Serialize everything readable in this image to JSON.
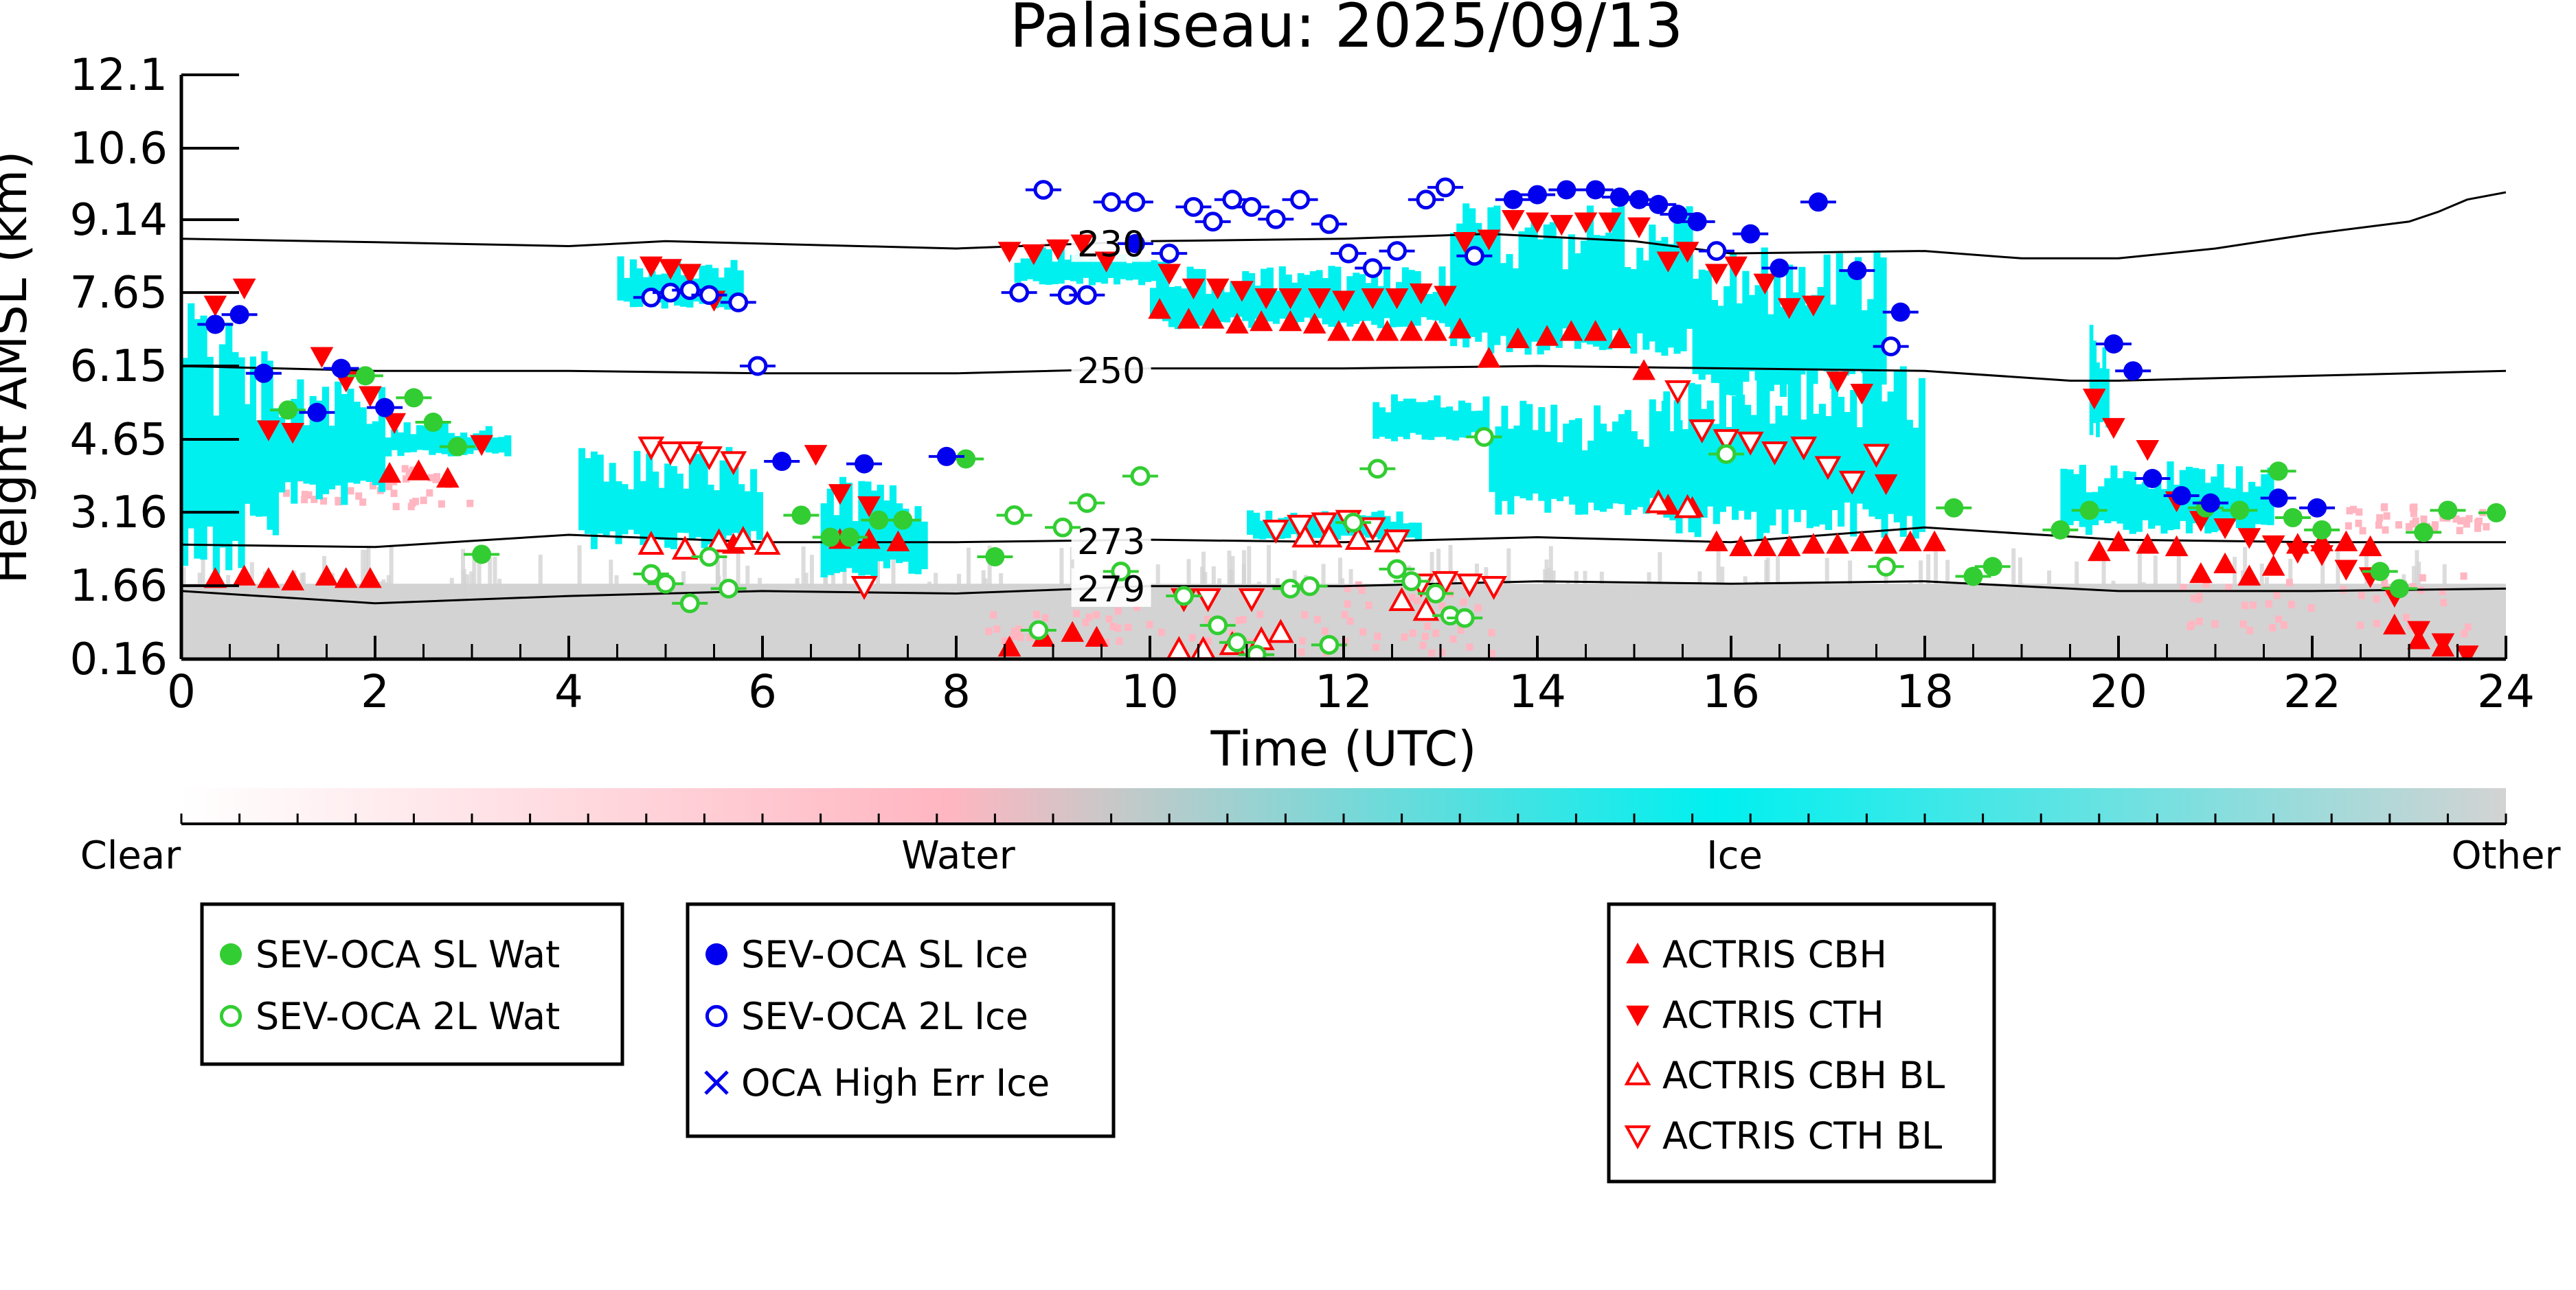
{
  "chart_data": {
    "type": "scatter",
    "title": "Palaiseau: 2025/09/13",
    "xlabel": "Time (UTC)",
    "ylabel": "Height AMSL (km)",
    "xlim": [
      0,
      24
    ],
    "ylim": [
      0.16,
      12.1
    ],
    "x_ticks": [
      0,
      2,
      4,
      6,
      8,
      10,
      12,
      14,
      16,
      18,
      20,
      22,
      24
    ],
    "y_ticks": [
      0.16,
      1.66,
      3.16,
      4.65,
      6.15,
      7.65,
      9.14,
      10.6,
      12.1
    ],
    "y_tick_labels": [
      "0.16",
      "1.66",
      "3.16",
      "4.65",
      "6.15",
      "7.65",
      "9.14",
      "10.6",
      "12.1"
    ],
    "grid": false,
    "background_classes": [
      {
        "name": "Water",
        "color": "#ffb6c1"
      },
      {
        "name": "Ice",
        "color": "#00f0f0"
      },
      {
        "name": "Other",
        "color": "#d3d3d3"
      }
    ],
    "isotherms": [
      {
        "label": "230",
        "label_x": 9.6,
        "x": [
          0,
          2,
          4,
          5,
          6,
          8,
          10,
          12,
          13.5,
          15,
          16,
          18,
          19,
          20,
          21,
          22,
          23,
          23.3,
          23.6,
          24
        ],
        "y": [
          8.75,
          8.68,
          8.6,
          8.7,
          8.65,
          8.55,
          8.7,
          8.75,
          8.85,
          8.7,
          8.45,
          8.5,
          8.35,
          8.35,
          8.55,
          8.85,
          9.1,
          9.3,
          9.55,
          9.7
        ]
      },
      {
        "label": "250",
        "label_x": 9.6,
        "x": [
          0,
          2,
          4,
          6,
          8,
          10,
          12,
          14,
          16,
          18,
          19.5,
          20,
          22,
          24
        ],
        "y": [
          6.15,
          6.05,
          6.05,
          6.0,
          6.0,
          6.1,
          6.1,
          6.15,
          6.1,
          6.05,
          5.85,
          5.85,
          5.95,
          6.05
        ]
      },
      {
        "label": "273",
        "label_x": 9.6,
        "x": [
          0,
          2,
          4,
          6,
          8,
          10,
          12,
          14,
          16,
          18,
          20,
          22,
          24
        ],
        "y": [
          2.5,
          2.45,
          2.7,
          2.55,
          2.55,
          2.6,
          2.55,
          2.65,
          2.55,
          2.85,
          2.6,
          2.55,
          2.55
        ]
      },
      {
        "label": "279",
        "label_x": 9.6,
        "x": [
          0,
          2,
          4,
          6,
          8,
          10,
          12,
          14,
          16,
          18,
          20,
          22,
          24
        ],
        "y": [
          1.55,
          1.3,
          1.45,
          1.55,
          1.5,
          1.65,
          1.65,
          1.75,
          1.7,
          1.75,
          1.55,
          1.55,
          1.6
        ]
      }
    ],
    "series": [
      {
        "name": "SEV-OCA SL Wat",
        "color": "#32cd32",
        "marker": "filled-circle",
        "x": [
          1.1,
          1.9,
          2.4,
          2.6,
          2.85,
          3.1,
          6.4,
          6.7,
          6.9,
          7.2,
          7.45,
          8.1,
          8.4,
          18.3,
          18.5,
          18.7,
          19.4,
          19.7,
          20.9,
          21.25,
          21.65,
          21.8,
          22.1,
          22.7,
          22.9,
          23.15,
          23.4,
          23.9
        ],
        "y": [
          5.25,
          5.95,
          5.5,
          5.0,
          4.5,
          2.3,
          3.1,
          2.65,
          2.65,
          3.0,
          3.0,
          4.25,
          2.25,
          3.25,
          1.85,
          2.05,
          2.8,
          3.2,
          3.25,
          3.2,
          4.0,
          3.05,
          2.8,
          1.95,
          1.6,
          2.75,
          3.2,
          3.15
        ]
      },
      {
        "name": "SEV-OCA 2L Wat",
        "color": "#32cd32",
        "marker": "open-circle",
        "x": [
          4.85,
          5.0,
          5.25,
          5.45,
          5.65,
          8.6,
          8.85,
          9.1,
          9.35,
          9.7,
          9.9,
          10.35,
          10.7,
          10.9,
          11.1,
          11.45,
          11.65,
          11.85,
          12.1,
          12.35,
          12.55,
          12.7,
          12.95,
          13.1,
          13.25,
          13.45,
          15.95,
          17.6
        ],
        "y": [
          1.9,
          1.7,
          1.3,
          2.25,
          1.6,
          3.1,
          0.75,
          2.85,
          3.35,
          1.95,
          3.9,
          1.45,
          0.85,
          0.5,
          0.25,
          1.6,
          1.65,
          0.45,
          2.95,
          4.05,
          2.0,
          1.75,
          1.5,
          1.05,
          1.0,
          4.7,
          4.35,
          2.05
        ]
      },
      {
        "name": "SEV-OCA SL Ice",
        "color": "#0000ee",
        "marker": "filled-circle",
        "x": [
          0.35,
          0.6,
          0.85,
          1.4,
          1.65,
          2.1,
          6.2,
          7.05,
          7.9,
          9.85,
          13.75,
          14.0,
          14.3,
          14.6,
          14.85,
          15.05,
          15.25,
          15.45,
          15.65,
          16.2,
          16.5,
          16.9,
          17.3,
          17.75,
          19.95,
          20.15,
          20.35,
          20.65,
          20.95,
          21.65,
          22.05
        ],
        "y": [
          7.0,
          7.2,
          6.0,
          5.2,
          6.1,
          5.3,
          4.2,
          4.15,
          4.3,
          8.65,
          9.55,
          9.65,
          9.75,
          9.75,
          9.6,
          9.55,
          9.45,
          9.25,
          9.1,
          8.85,
          8.15,
          9.5,
          8.1,
          7.25,
          6.6,
          6.05,
          3.85,
          3.5,
          3.35,
          3.45,
          3.25
        ]
      },
      {
        "name": "SEV-OCA 2L Ice",
        "color": "#0000ee",
        "marker": "open-circle",
        "x": [
          4.85,
          5.05,
          5.25,
          5.45,
          5.75,
          5.95,
          8.65,
          8.9,
          9.15,
          9.35,
          9.6,
          9.85,
          10.2,
          10.45,
          10.65,
          10.85,
          11.05,
          11.3,
          11.55,
          11.85,
          12.05,
          12.3,
          12.55,
          12.85,
          13.05,
          13.35,
          15.85,
          17.65
        ],
        "y": [
          7.55,
          7.65,
          7.7,
          7.6,
          7.45,
          6.15,
          7.65,
          9.75,
          7.6,
          7.6,
          9.5,
          9.5,
          8.45,
          9.4,
          9.1,
          9.55,
          9.4,
          9.15,
          9.55,
          9.05,
          8.45,
          8.15,
          8.5,
          9.55,
          9.8,
          8.4,
          8.5,
          6.55
        ]
      }
    ],
    "actris": [
      {
        "name": "ACTRIS CBH",
        "color": "#ff0000",
        "marker": "up-filled",
        "x": [
          0.35,
          0.65,
          0.9,
          1.15,
          1.5,
          1.7,
          1.95,
          2.15,
          2.45,
          2.75,
          5.7,
          6.8,
          7.1,
          7.4,
          8.55,
          8.9,
          9.2,
          9.45,
          10.1,
          10.4,
          10.65,
          10.9,
          11.15,
          11.45,
          11.7,
          11.95,
          12.2,
          12.45,
          12.7,
          12.95,
          13.2,
          13.5,
          13.8,
          14.1,
          14.35,
          14.6,
          14.85,
          15.1,
          15.35,
          15.6,
          15.85,
          16.1,
          16.35,
          16.6,
          16.85,
          17.1,
          17.35,
          17.6,
          17.85,
          18.1,
          19.8,
          20.0,
          20.3,
          20.6,
          20.85,
          21.1,
          21.35,
          21.6,
          21.85,
          22.1,
          22.35,
          22.6,
          22.85,
          23.1,
          23.35
        ],
        "y": [
          1.8,
          1.85,
          1.8,
          1.75,
          1.85,
          1.8,
          1.8,
          3.95,
          4.0,
          3.85,
          2.5,
          2.6,
          2.6,
          2.55,
          0.4,
          0.6,
          0.7,
          0.6,
          7.3,
          7.1,
          7.1,
          7.0,
          7.05,
          7.05,
          7.0,
          6.85,
          6.85,
          6.85,
          6.85,
          6.85,
          6.9,
          6.3,
          6.7,
          6.75,
          6.85,
          6.85,
          6.7,
          6.05,
          3.3,
          3.25,
          2.55,
          2.45,
          2.45,
          2.45,
          2.5,
          2.5,
          2.55,
          2.5,
          2.55,
          2.55,
          2.35,
          2.55,
          2.5,
          2.45,
          1.9,
          2.1,
          1.85,
          2.05,
          2.5,
          2.55,
          2.55,
          2.45,
          0.85,
          0.55,
          0.4
        ]
      },
      {
        "name": "ACTRIS CTH",
        "color": "#ff0000",
        "marker": "down-filled",
        "x": [
          0.35,
          0.65,
          0.9,
          1.15,
          1.45,
          1.7,
          1.95,
          2.2,
          3.1,
          4.85,
          5.05,
          5.25,
          5.5,
          6.55,
          6.8,
          7.1,
          8.55,
          8.8,
          9.05,
          9.3,
          9.55,
          10.2,
          10.45,
          10.7,
          10.95,
          11.2,
          11.45,
          11.75,
          12.0,
          12.3,
          12.55,
          12.8,
          13.05,
          13.25,
          13.5,
          13.75,
          14.0,
          14.25,
          14.5,
          14.75,
          15.05,
          15.35,
          15.55,
          15.85,
          16.05,
          16.35,
          16.6,
          16.85,
          17.1,
          17.35,
          17.6,
          19.75,
          19.95,
          20.3,
          20.6,
          20.85,
          21.1,
          21.35,
          21.6,
          21.85,
          22.1,
          22.35,
          22.6,
          22.85,
          23.1,
          23.35,
          23.6
        ],
        "y": [
          7.4,
          7.75,
          4.85,
          4.8,
          6.35,
          5.85,
          5.55,
          5.0,
          4.55,
          8.2,
          8.15,
          8.05,
          7.5,
          4.35,
          3.55,
          3.3,
          8.5,
          8.45,
          8.55,
          8.65,
          8.3,
          8.05,
          7.75,
          7.75,
          7.7,
          7.55,
          7.55,
          7.55,
          7.5,
          7.55,
          7.55,
          7.65,
          7.6,
          8.7,
          8.75,
          9.15,
          9.1,
          9.05,
          9.1,
          9.1,
          9.0,
          8.3,
          8.5,
          8.05,
          8.2,
          7.85,
          7.35,
          7.4,
          5.85,
          5.6,
          3.75,
          5.5,
          4.9,
          4.45,
          3.4,
          3.0,
          2.85,
          2.65,
          2.5,
          2.35,
          2.3,
          2.0,
          1.85,
          1.45,
          0.75,
          0.5,
          0.25
        ]
      },
      {
        "name": "ACTRIS CBH BL",
        "color": "#ff0000",
        "marker": "up-open",
        "x": [
          4.85,
          5.2,
          5.55,
          5.8,
          6.05,
          10.3,
          10.55,
          10.85,
          11.15,
          11.35,
          11.6,
          11.85,
          12.15,
          12.45,
          12.6,
          12.85,
          15.25,
          15.55
        ],
        "y": [
          2.5,
          2.4,
          2.55,
          2.6,
          2.5,
          0.35,
          0.35,
          0.45,
          0.55,
          0.7,
          2.65,
          2.65,
          2.6,
          2.55,
          1.35,
          1.15,
          3.35,
          3.25
        ]
      },
      {
        "name": "ACTRIS CTH BL",
        "color": "#ff0000",
        "marker": "down-open",
        "x": [
          4.85,
          5.05,
          5.25,
          5.45,
          5.7,
          7.05,
          10.35,
          10.6,
          11.05,
          11.3,
          11.55,
          11.8,
          12.05,
          12.3,
          12.55,
          12.8,
          13.05,
          13.3,
          13.55,
          15.45,
          15.7,
          15.95,
          16.2,
          16.45,
          16.75,
          17.0,
          17.25,
          17.5
        ],
        "y": [
          4.5,
          4.4,
          4.4,
          4.3,
          4.2,
          1.65,
          1.4,
          1.4,
          1.4,
          2.8,
          2.9,
          2.95,
          3.0,
          2.85,
          2.6,
          1.7,
          1.75,
          1.7,
          1.65,
          5.65,
          4.85,
          4.65,
          4.6,
          4.4,
          4.5,
          4.1,
          3.8,
          4.35
        ]
      }
    ],
    "colorbar": {
      "labels": [
        "Clear",
        "Water",
        "Ice",
        "Other"
      ]
    },
    "legend_boxes": [
      {
        "entries": [
          {
            "label": "SEV-OCA SL Wat",
            "color": "#32cd32",
            "marker": "filled-circle"
          },
          {
            "label": "SEV-OCA 2L Wat",
            "color": "#32cd32",
            "marker": "open-circle"
          }
        ]
      },
      {
        "entries": [
          {
            "label": "SEV-OCA SL Ice",
            "color": "#0000ee",
            "marker": "filled-circle"
          },
          {
            "label": "SEV-OCA 2L Ice",
            "color": "#0000ee",
            "marker": "open-circle"
          },
          {
            "label": "OCA High Err Ice",
            "color": "#0000ee",
            "marker": "x"
          }
        ]
      },
      {
        "entries": [
          {
            "label": "ACTRIS CBH",
            "color": "#ff0000",
            "marker": "up-filled"
          },
          {
            "label": "ACTRIS CTH",
            "color": "#ff0000",
            "marker": "down-filled"
          },
          {
            "label": "ACTRIS CBH BL",
            "color": "#ff0000",
            "marker": "up-open"
          },
          {
            "label": "ACTRIS CTH BL",
            "color": "#ff0000",
            "marker": "down-open"
          }
        ]
      }
    ]
  }
}
